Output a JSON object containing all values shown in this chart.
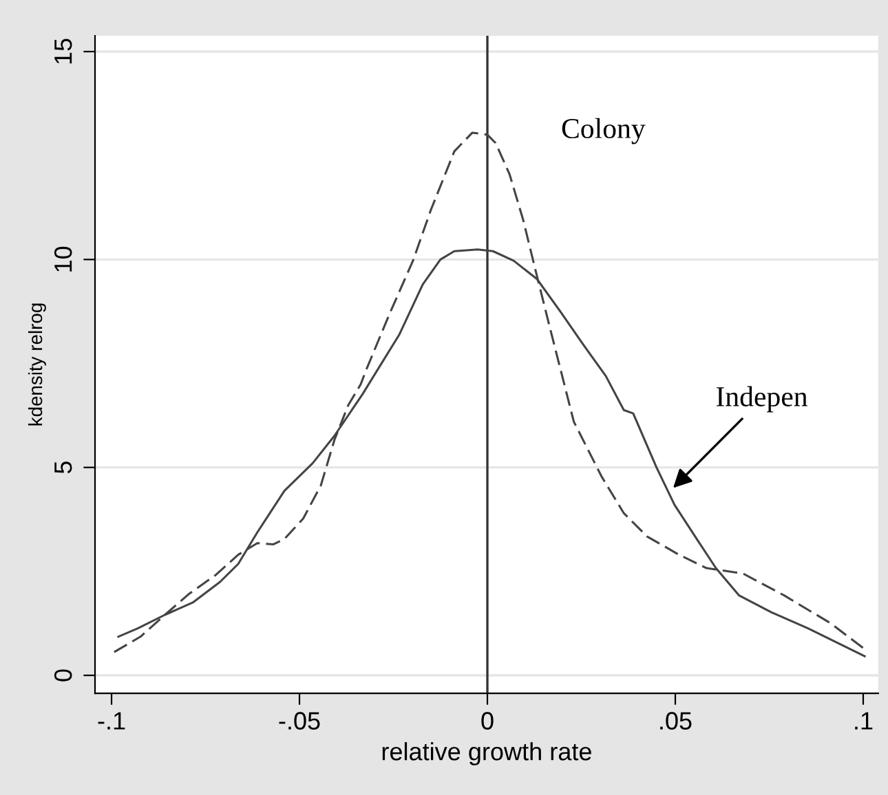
{
  "chart_data": {
    "type": "line",
    "xlabel": "relative growth rate",
    "ylabel": "kdensity relrog",
    "xlim": [
      -0.1044,
      0.104
    ],
    "ylim": [
      -0.43,
      15.38
    ],
    "xticks": [
      {
        "value": -0.1,
        "label": "-.1"
      },
      {
        "value": -0.05,
        "label": "-.05"
      },
      {
        "value": 0,
        "label": "0"
      },
      {
        "value": 0.05,
        "label": ".05"
      },
      {
        "value": 0.1,
        "label": ".1"
      }
    ],
    "yticks": [
      0,
      5,
      10,
      15
    ],
    "grid": "y",
    "legend": false,
    "ref_lines": [
      {
        "axis": "x",
        "value": 0,
        "color": "#333333"
      }
    ],
    "annotations": [
      "Colony",
      {
        "text": "Indepen",
        "x": 0.0487,
        "y": 4.44
      }
    ],
    "series": [
      {
        "color": "#444444",
        "line_style": "dashed",
        "x": [
          -0.0993,
          -0.0923,
          -0.085,
          -0.0795,
          -0.0722,
          -0.0663,
          -0.0612,
          -0.057,
          -0.054,
          -0.049,
          -0.0443,
          -0.0407,
          -0.037,
          -0.0337,
          -0.032,
          -0.026,
          -0.0198,
          -0.015,
          -0.0088,
          -0.004,
          0,
          0.0022,
          0.0059,
          0.0095,
          0.0132,
          0.0168,
          0.0205,
          0.023,
          0.0304,
          0.0363,
          0.0425,
          0.051,
          0.0583,
          0.068,
          0.079,
          0.0912,
          0.1004
        ],
        "values": [
          0.56,
          0.93,
          1.52,
          1.95,
          2.42,
          2.9,
          3.18,
          3.15,
          3.28,
          3.77,
          4.57,
          5.66,
          6.5,
          7.0,
          7.4,
          8.7,
          9.97,
          11.2,
          12.6,
          13.05,
          13.0,
          12.8,
          12.05,
          10.96,
          9.6,
          8.3,
          6.99,
          6.1,
          4.78,
          3.9,
          3.34,
          2.9,
          2.58,
          2.45,
          1.92,
          1.26,
          0.63
        ]
      },
      {
        "color": "#444444",
        "line_style": "solid",
        "x": [
          -0.0982,
          -0.093,
          -0.0857,
          -0.0784,
          -0.0711,
          -0.0663,
          -0.0612,
          -0.054,
          -0.0465,
          -0.0407,
          -0.0333,
          -0.0234,
          -0.0172,
          -0.0125,
          -0.0088,
          -0.0026,
          0.0015,
          0.007,
          0.0132,
          0.0194,
          0.0253,
          0.0315,
          0.0363,
          0.0388,
          0.045,
          0.0498,
          0.056,
          0.0608,
          0.067,
          0.0755,
          0.0853,
          0.1004
        ],
        "values": [
          0.93,
          1.13,
          1.46,
          1.75,
          2.25,
          2.68,
          3.44,
          4.44,
          5.1,
          5.76,
          6.75,
          8.2,
          9.4,
          10.0,
          10.2,
          10.24,
          10.2,
          9.97,
          9.53,
          8.75,
          7.98,
          7.2,
          6.38,
          6.3,
          5.0,
          4.1,
          3.24,
          2.58,
          1.92,
          1.52,
          1.13,
          0.46
        ]
      }
    ]
  }
}
